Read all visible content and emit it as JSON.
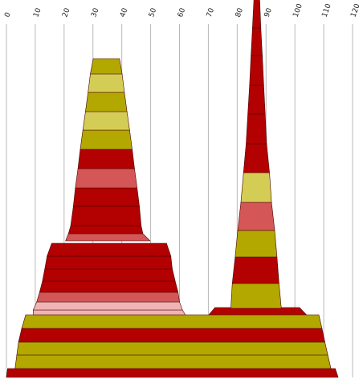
{
  "chart_data": {
    "type": "bar",
    "orientation": "horizontal-stacked-outline",
    "x_axis": {
      "ticks": [
        0,
        10,
        20,
        30,
        40,
        50,
        60,
        70,
        80,
        90,
        100,
        110,
        120
      ],
      "tick_labels": [
        "0",
        "10",
        "20",
        "30",
        "40",
        "50",
        "60",
        "70",
        "80",
        "90",
        "100",
        "110",
        "120"
      ],
      "position": "top",
      "label_rotation": -70,
      "grid": true
    },
    "colors": {
      "olive": "#b2a800",
      "khaki": "#d4cd55",
      "dark_red": "#b30000",
      "salmon": "#d45656",
      "pink": "#f0b4b4"
    },
    "shapes": [
      {
        "name": "base-stack",
        "layers": [
          {
            "top_left": 0.4,
            "top_right": 114,
            "bottom_left": 0,
            "bottom_right": 115,
            "color": "dark_red"
          },
          {
            "top_left": 3.6,
            "top_right": 111.4,
            "bottom_left": 3,
            "bottom_right": 112.5,
            "color": "olive"
          },
          {
            "top_left": 4.2,
            "top_right": 110.4,
            "bottom_left": 3.6,
            "bottom_right": 111.4,
            "color": "olive"
          },
          {
            "top_left": 5.3,
            "top_right": 109.4,
            "bottom_left": 4.2,
            "bottom_right": 110.4,
            "color": "dark_red"
          },
          {
            "top_left": 6.7,
            "top_right": 108.3,
            "bottom_left": 5.3,
            "bottom_right": 109.4,
            "color": "olive"
          }
        ]
      },
      {
        "name": "left-stack-lower",
        "layers": [
          {
            "top_left": 9.3,
            "top_right": 61,
            "bottom_left": 9.3,
            "bottom_right": 62,
            "color": "pink"
          },
          {
            "top_left": 10.5,
            "top_right": 60,
            "bottom_left": 9.3,
            "bottom_right": 61,
            "color": "pink"
          },
          {
            "top_left": 11.5,
            "top_right": 59.5,
            "bottom_left": 10.5,
            "bottom_right": 60,
            "color": "salmon"
          },
          {
            "top_left": 12.5,
            "top_right": 58.5,
            "bottom_left": 11.5,
            "bottom_right": 59.5,
            "color": "dark_red"
          },
          {
            "top_left": 13.3,
            "top_right": 57.5,
            "bottom_left": 12.5,
            "bottom_right": 58.5,
            "color": "dark_red"
          },
          {
            "top_left": 14.1,
            "top_right": 57,
            "bottom_left": 13.3,
            "bottom_right": 57.5,
            "color": "dark_red"
          },
          {
            "top_left": 15.7,
            "top_right": 55.5,
            "bottom_left": 14.1,
            "bottom_right": 57,
            "color": "dark_red"
          }
        ]
      },
      {
        "name": "left-cone",
        "layers": [
          {
            "top_left": 21.5,
            "top_right": 47.3,
            "bottom_left": 20.5,
            "bottom_right": 49.8,
            "color": "salmon"
          },
          {
            "top_left": 22.3,
            "top_right": 46.7,
            "bottom_left": 21.5,
            "bottom_right": 47.3,
            "color": "dark_red"
          },
          {
            "top_left": 23.2,
            "top_right": 46.1,
            "bottom_left": 22.3,
            "bottom_right": 46.7,
            "color": "dark_red"
          },
          {
            "top_left": 23.9,
            "top_right": 45.3,
            "bottom_left": 23.2,
            "bottom_right": 46.1,
            "color": "dark_red"
          },
          {
            "top_left": 24.8,
            "top_right": 44.4,
            "bottom_left": 23.9,
            "bottom_right": 45.3,
            "color": "salmon"
          },
          {
            "top_left": 25.6,
            "top_right": 43.6,
            "bottom_left": 24.8,
            "bottom_right": 44.4,
            "color": "dark_red"
          },
          {
            "top_left": 26.5,
            "top_right": 42.7,
            "bottom_left": 25.6,
            "bottom_right": 43.6,
            "color": "olive"
          },
          {
            "top_left": 27.4,
            "top_right": 41.8,
            "bottom_left": 26.5,
            "bottom_right": 42.7,
            "color": "khaki"
          },
          {
            "top_left": 28.3,
            "top_right": 40.9,
            "bottom_left": 27.4,
            "bottom_right": 41.8,
            "color": "olive"
          },
          {
            "top_left": 29.1,
            "top_right": 40.1,
            "bottom_left": 28.3,
            "bottom_right": 40.9,
            "color": "khaki"
          },
          {
            "top_left": 30.1,
            "top_right": 39.2,
            "bottom_left": 29.1,
            "bottom_right": 40.1,
            "color": "olive"
          }
        ]
      },
      {
        "name": "right-base-cap",
        "layers": [
          {
            "top_left": 72.3,
            "top_right": 101.6,
            "bottom_left": 70.2,
            "bottom_right": 104.0,
            "color": "dark_red"
          }
        ]
      },
      {
        "name": "right-cone",
        "layers": [
          {
            "top_left": 78.3,
            "top_right": 94.5,
            "bottom_left": 77.8,
            "bottom_right": 95.3,
            "color": "olive"
          },
          {
            "top_left": 79.3,
            "top_right": 93.8,
            "bottom_left": 78.3,
            "bottom_right": 94.5,
            "color": "dark_red"
          },
          {
            "top_left": 80.2,
            "top_right": 93.0,
            "bottom_left": 79.3,
            "bottom_right": 93.8,
            "color": "olive"
          },
          {
            "top_left": 81.3,
            "top_right": 91.9,
            "bottom_left": 80.2,
            "bottom_right": 93.0,
            "color": "salmon"
          },
          {
            "top_left": 82.2,
            "top_right": 91.2,
            "bottom_left": 81.3,
            "bottom_right": 91.9,
            "color": "khaki"
          },
          {
            "top_left": 83.1,
            "top_right": 90.2,
            "bottom_left": 82.2,
            "bottom_right": 91.2,
            "color": "dark_red"
          },
          {
            "top_left": 83.7,
            "top_right": 89.7,
            "bottom_left": 83.1,
            "bottom_right": 90.2,
            "color": "dark_red"
          },
          {
            "top_left": 84.3,
            "top_right": 89.2,
            "bottom_left": 83.7,
            "bottom_right": 89.7,
            "color": "dark_red"
          },
          {
            "top_left": 84.8,
            "top_right": 88.7,
            "bottom_left": 84.3,
            "bottom_right": 89.2,
            "color": "dark_red"
          },
          {
            "top_left": 85.3,
            "top_right": 88.2,
            "bottom_left": 84.8,
            "bottom_right": 88.7,
            "color": "dark_red"
          },
          {
            "top_left": 85.8,
            "top_right": 87.8,
            "bottom_left": 85.3,
            "bottom_right": 88.2,
            "color": "dark_red"
          }
        ]
      }
    ]
  }
}
